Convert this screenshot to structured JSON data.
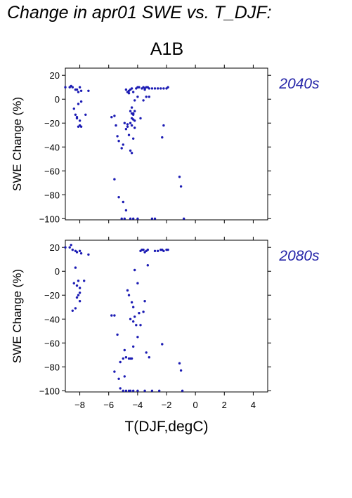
{
  "title": "Change in apr01 SWE vs. T_DJF:",
  "scenario": "A1B",
  "colors": {
    "points": "#1c1cb4",
    "period_label": "#2424a8",
    "frame": "#000000"
  },
  "chart_data": [
    {
      "type": "scatter",
      "panel_label": "2040s",
      "ylabel": "SWE Change (%)",
      "xlabel": "",
      "xlim": [
        -9,
        5
      ],
      "ylim": [
        -101,
        26
      ],
      "yticks": [
        -100,
        -80,
        -60,
        -40,
        -20,
        0,
        20
      ],
      "ytick_labels": [
        "−100",
        "−80",
        "−60",
        "−40",
        "−20",
        "0",
        "20"
      ],
      "x": [
        -9.0,
        -8.7,
        -8.6,
        -8.5,
        -8.3,
        -8.2,
        -8.0,
        -7.9,
        -7.4,
        -8.1,
        -7.9,
        -8.4,
        -8.1,
        -8.3,
        -8.2,
        -8.0,
        -8.1,
        -8.2,
        -8.0,
        -7.9,
        -7.6,
        -5.8,
        -5.6,
        -5.5,
        -5.4,
        -5.3,
        -5.1,
        -5.0,
        -4.9,
        -4.8,
        -4.7,
        -4.6,
        -4.5,
        -4.4,
        -4.3,
        -4.8,
        -4.6,
        -4.7,
        -4.5,
        -4.4,
        -4.6,
        -4.3,
        -4.4,
        -4.2,
        -4.5,
        -4.4,
        -4.3,
        -4.2,
        -4.1,
        -4.0,
        -3.9,
        -3.7,
        -3.6,
        -3.5,
        -3.4,
        -3.3,
        -3.2,
        -3.0,
        -2.8,
        -2.6,
        -2.4,
        -2.2,
        -2.0,
        -1.9,
        -3.8,
        -3.6,
        -3.4,
        -3.2,
        -4.0,
        -3.5,
        -2.2,
        -2.3,
        -4.4,
        -4.3,
        -4.2,
        -4.4,
        -4.5,
        -4.2,
        -4.3,
        -4.7,
        -5.6,
        -5.3,
        -5.0,
        -4.8,
        -4.5,
        -4.3,
        -4.0,
        -3.0,
        -2.8,
        -1.1,
        -1.0,
        -0.8,
        -4.9,
        -5.1
      ],
      "y": [
        10,
        10,
        11,
        10,
        8,
        8,
        10,
        7,
        7,
        6,
        -2,
        -8,
        -4,
        -13,
        -15,
        -22,
        -23,
        -16,
        -18,
        -23,
        -13,
        -15,
        -14,
        -22,
        -31,
        -35,
        -41,
        -38,
        -20,
        -25,
        -23,
        -30,
        -43,
        -45,
        -33,
        8,
        7,
        6,
        8,
        9,
        5,
        6,
        -7,
        -1,
        -10,
        -12,
        -13,
        -18,
        9,
        10,
        10,
        9,
        10,
        9,
        10,
        10,
        9,
        9,
        9,
        9,
        9,
        9,
        9,
        10,
        -16,
        -1,
        2,
        2,
        2,
        8,
        -22,
        -32,
        -16,
        -17,
        -24,
        -22,
        -20,
        -10,
        -12,
        -21,
        -67,
        -82,
        -86,
        -93,
        -100,
        -100,
        -100,
        -100,
        -100,
        -65,
        -73,
        -100,
        -100,
        -100
      ]
    },
    {
      "type": "scatter",
      "panel_label": "2080s",
      "ylabel": "SWE Change (%)",
      "xlabel": "T(DJF,degC)",
      "xlim": [
        -9,
        5
      ],
      "ylim": [
        -101,
        26
      ],
      "xticks": [
        -8,
        -6,
        -4,
        -2,
        0,
        2,
        4
      ],
      "xtick_labels": [
        "−8",
        "−6",
        "−4",
        "−2",
        "0",
        "2",
        "4"
      ],
      "yticks": [
        -100,
        -80,
        -60,
        -40,
        -20,
        0,
        20
      ],
      "ytick_labels": [
        "−100",
        "−80",
        "−60",
        "−40",
        "−20",
        "0",
        "20"
      ],
      "x": [
        -9.0,
        -8.7,
        -8.6,
        -8.5,
        -8.3,
        -8.2,
        -8.0,
        -7.9,
        -7.4,
        -8.3,
        -8.1,
        -8.4,
        -8.2,
        -8.0,
        -8.1,
        -8.2,
        -8.0,
        -7.7,
        -8.5,
        -8.3,
        -8.0,
        -5.8,
        -5.6,
        -5.4,
        -5.2,
        -5.0,
        -4.9,
        -4.8,
        -4.6,
        -4.5,
        -4.4,
        -4.3,
        -4.7,
        -4.6,
        -4.4,
        -4.3,
        -4.2,
        -4.5,
        -4.3,
        -4.1,
        -4.0,
        -3.9,
        -3.8,
        -3.6,
        -3.8,
        -3.7,
        -3.6,
        -3.5,
        -3.4,
        -3.3,
        -2.8,
        -2.6,
        -2.4,
        -2.3,
        -2.2,
        -2.0,
        -1.9,
        -3.3,
        -2.3,
        -4.2,
        -4.0,
        -3.5,
        -3.4,
        -3.2,
        -5.6,
        -5.3,
        -5.0,
        -4.8,
        -4.6,
        -4.5,
        -4.3,
        -4.0,
        -3.5,
        -3.0,
        -2.5,
        -1.1,
        -1.0,
        -0.9,
        -5.2,
        -4.9
      ],
      "y": [
        20,
        20,
        22,
        18,
        17,
        16,
        17,
        15,
        14,
        3,
        -8,
        -10,
        -12,
        -14,
        -20,
        -22,
        -18,
        -8,
        -33,
        -31,
        -25,
        -37,
        -37,
        -53,
        -76,
        -73,
        -66,
        -72,
        -73,
        -73,
        -73,
        -63,
        -16,
        -20,
        -26,
        -30,
        -38,
        -40,
        -42,
        -45,
        -55,
        -35,
        -45,
        -34,
        17,
        18,
        18,
        16,
        17,
        18,
        17,
        17,
        18,
        18,
        17,
        18,
        18,
        5,
        -61,
        1,
        -10,
        -25,
        -68,
        -72,
        -84,
        -90,
        -100,
        -100,
        -100,
        -100,
        -100,
        -100,
        -100,
        -100,
        -100,
        -77,
        -83,
        -100,
        -98,
        -88
      ]
    }
  ]
}
